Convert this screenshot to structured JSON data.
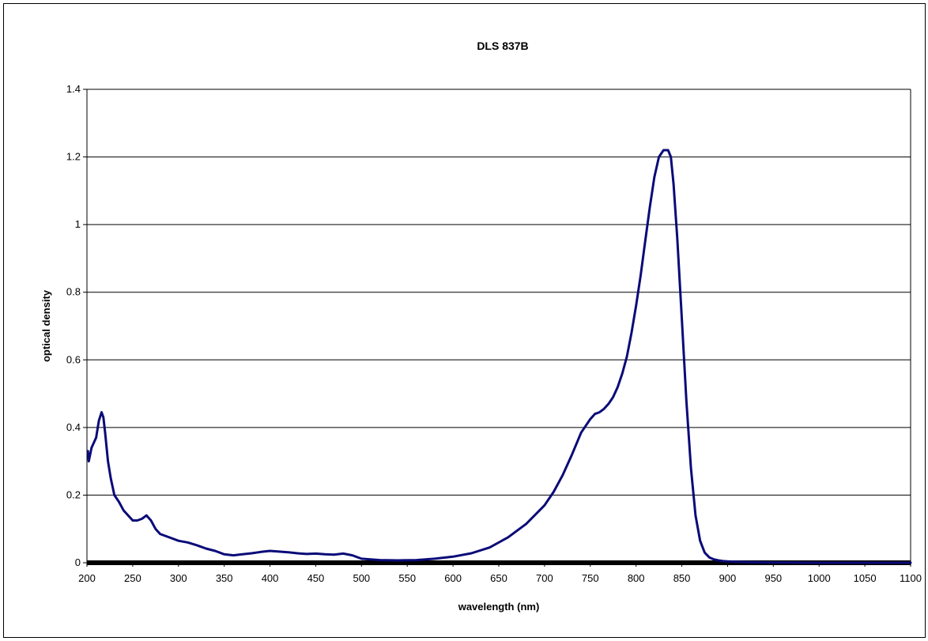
{
  "chart_data": {
    "type": "line",
    "title": "DLS 837B",
    "xlabel": "wavelength (nm)",
    "ylabel": "optical density",
    "xlim": [
      200,
      1100
    ],
    "ylim": [
      0,
      1.4
    ],
    "x_ticks": [
      "200",
      "250",
      "300",
      "350",
      "400",
      "450",
      "500",
      "550",
      "600",
      "650",
      "700",
      "750",
      "800",
      "850",
      "900",
      "950",
      "1000",
      "1050",
      "1100"
    ],
    "y_ticks": [
      "0",
      "0.2",
      "0.4",
      "0.6",
      "0.8",
      "1",
      "1.2",
      "1.4"
    ],
    "grid": "horizontal",
    "legend": "none",
    "colors": {
      "line": "#0a0a78",
      "grid": "#000000",
      "baseline": "#000000"
    },
    "series": [
      {
        "x": [
          201,
          202,
          205,
          210,
          213,
          216,
          218,
          220,
          223,
          226,
          230,
          235,
          240,
          245,
          250,
          255,
          260,
          265,
          270,
          275,
          280,
          290,
          300,
          310,
          320,
          330,
          340,
          350,
          360,
          370,
          380,
          390,
          400,
          410,
          420,
          430,
          440,
          450,
          460,
          470,
          480,
          490,
          500,
          520,
          540,
          560,
          580,
          600,
          620,
          640,
          660,
          680,
          700,
          710,
          720,
          730,
          740,
          750,
          755,
          760,
          765,
          770,
          775,
          780,
          785,
          790,
          795,
          800,
          805,
          810,
          815,
          820,
          825,
          830,
          835,
          838,
          841,
          845,
          850,
          855,
          860,
          865,
          870,
          875,
          880,
          885,
          890,
          895,
          900,
          910,
          920,
          950,
          1000,
          1100
        ],
        "y": [
          0.33,
          0.3,
          0.34,
          0.37,
          0.42,
          0.445,
          0.43,
          0.38,
          0.3,
          0.25,
          0.2,
          0.18,
          0.155,
          0.14,
          0.125,
          0.125,
          0.13,
          0.14,
          0.125,
          0.1,
          0.085,
          0.075,
          0.065,
          0.06,
          0.052,
          0.042,
          0.035,
          0.025,
          0.022,
          0.025,
          0.028,
          0.032,
          0.035,
          0.033,
          0.031,
          0.028,
          0.026,
          0.027,
          0.025,
          0.024,
          0.027,
          0.022,
          0.012,
          0.008,
          0.007,
          0.008,
          0.012,
          0.018,
          0.028,
          0.045,
          0.075,
          0.115,
          0.17,
          0.21,
          0.26,
          0.32,
          0.385,
          0.425,
          0.44,
          0.445,
          0.455,
          0.47,
          0.49,
          0.52,
          0.56,
          0.61,
          0.68,
          0.76,
          0.85,
          0.95,
          1.05,
          1.14,
          1.2,
          1.22,
          1.22,
          1.2,
          1.12,
          0.96,
          0.72,
          0.48,
          0.28,
          0.14,
          0.065,
          0.03,
          0.016,
          0.01,
          0.007,
          0.005,
          0.004,
          0.003,
          0.002,
          0.001,
          0.0,
          0.0
        ]
      }
    ]
  }
}
